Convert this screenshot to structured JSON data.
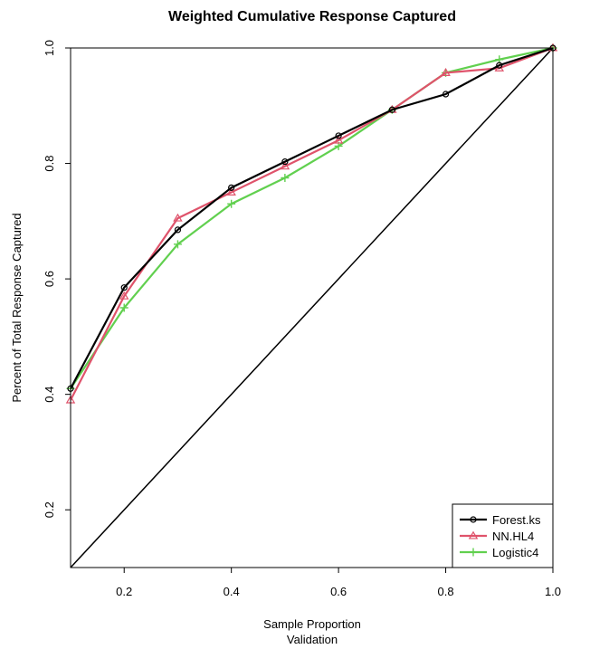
{
  "chart_data": {
    "type": "line",
    "title": "Weighted Cumulative Response Captured",
    "xlabel": "Sample Proportion",
    "xlabel_sub": "Validation",
    "ylabel": "Percent of Total Response Captured",
    "xlim": [
      0.1,
      1.0
    ],
    "ylim": [
      0.1,
      1.0
    ],
    "xticks": [
      0.2,
      0.4,
      0.6,
      0.8,
      1.0
    ],
    "xtick_labels": [
      "0.2",
      "0.4",
      "0.6",
      "0.8",
      "1.0"
    ],
    "yticks": [
      0.2,
      0.4,
      0.6,
      0.8,
      1.0
    ],
    "ytick_labels": [
      "0.2",
      "0.4",
      "0.6",
      "0.8",
      "1.0"
    ],
    "grid": false,
    "legend_position": "bottom-right",
    "baseline": {
      "x": [
        0.1,
        1.0
      ],
      "y": [
        0.1,
        1.0
      ],
      "color": "#000000"
    },
    "x": [
      0.1,
      0.2,
      0.3,
      0.4,
      0.5,
      0.6,
      0.7,
      0.8,
      0.9,
      1.0
    ],
    "series": [
      {
        "name": "Forest.ks",
        "color": "#000000",
        "marker": "circle",
        "values": [
          0.41,
          0.585,
          0.685,
          0.758,
          0.803,
          0.848,
          0.893,
          0.92,
          0.97,
          1.0
        ]
      },
      {
        "name": "NN.HL4",
        "color": "#DF536B",
        "marker": "triangle",
        "values": [
          0.39,
          0.57,
          0.705,
          0.75,
          0.795,
          0.84,
          0.893,
          0.957,
          0.965,
          1.0
        ]
      },
      {
        "name": "Logistic4",
        "color": "#61D04F",
        "marker": "plus",
        "values": [
          0.41,
          0.55,
          0.66,
          0.73,
          0.775,
          0.83,
          0.893,
          0.957,
          0.98,
          1.0
        ]
      }
    ]
  }
}
